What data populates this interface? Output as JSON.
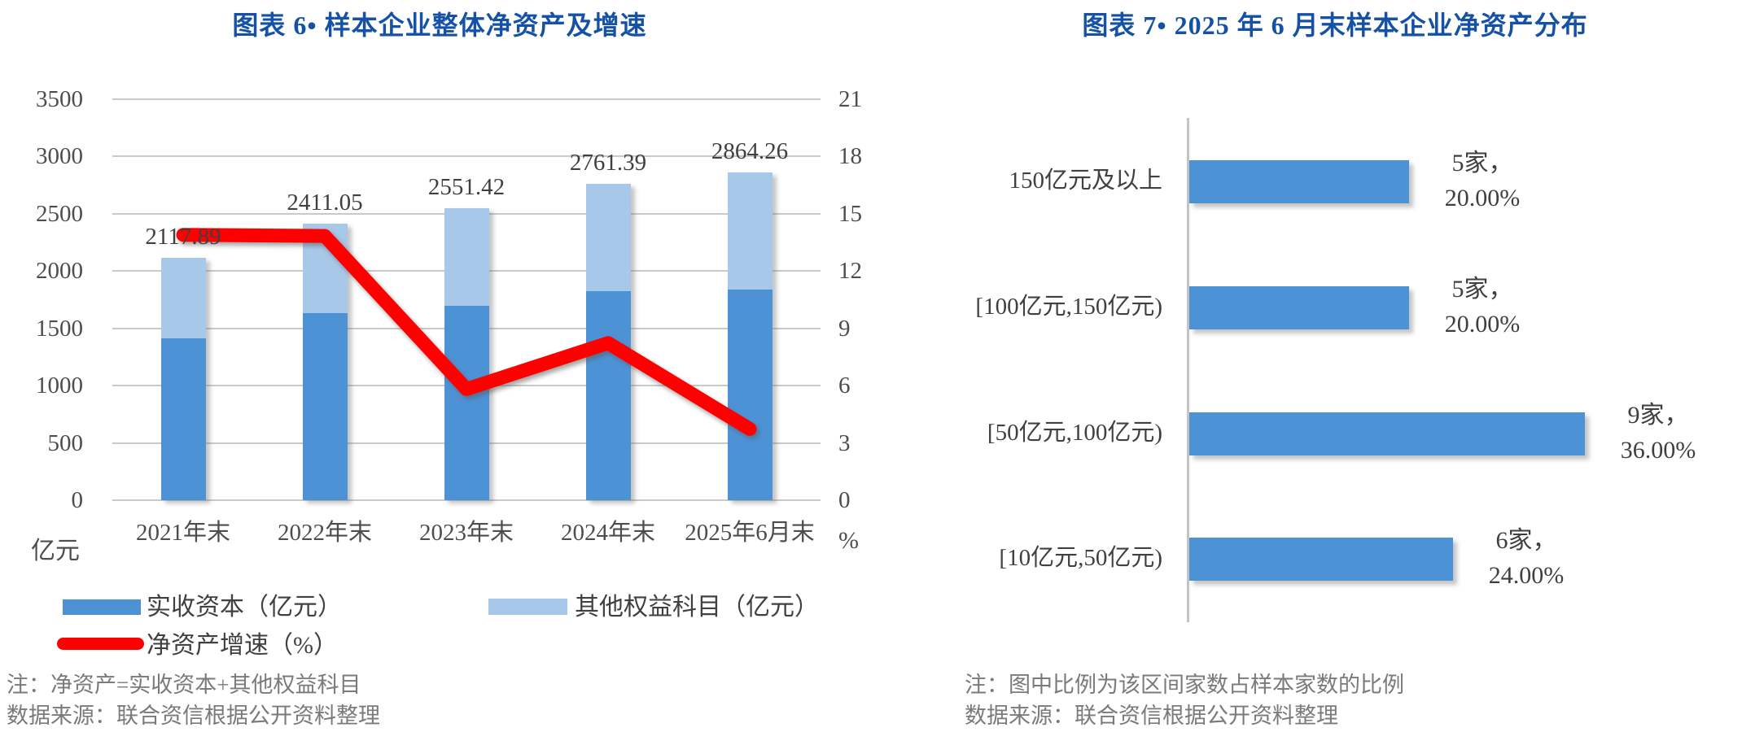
{
  "colors": {
    "title_blue": "#1552A5",
    "bar_dark_blue": "#4E92D6",
    "bar_light_blue": "#A8C8E9",
    "line_red": "#FF0000",
    "gridline": "#C9C9C9",
    "axis_text": "#4D4D4D",
    "label_text": "#3F3F3F",
    "note_text": "#7A7A7A"
  },
  "left_chart": {
    "note": "注：净资产=实收资本+其他权益科目",
    "source": "数据来源：联合资信根据公开资料整理"
  },
  "right_chart": {
    "note": "注：图中比例为该区间家数占样本家数的比例",
    "source": "数据来源：联合资信根据公开资料整理"
  },
  "chart_data": [
    {
      "type": "bar",
      "subtype": "stacked-bars-with-line",
      "title": "图表 6• 样本企业整体净资产及增速",
      "categories": [
        "2021年末",
        "2022年末",
        "2023年末",
        "2024年末",
        "2025年6月末"
      ],
      "series": [
        {
          "name": "实收资本（亿元）",
          "type": "bar",
          "stack": true,
          "axis": "left",
          "values": [
            1410,
            1635,
            1700,
            1825,
            1840
          ]
        },
        {
          "name": "其他权益科目（亿元）",
          "type": "bar",
          "stack": true,
          "axis": "left",
          "values": [
            707.89,
            776.05,
            851.42,
            936.39,
            1024.26
          ]
        },
        {
          "name": "净资产增速（%）",
          "type": "line",
          "axis": "right",
          "values": [
            13.9,
            13.84,
            5.82,
            8.23,
            3.73
          ]
        }
      ],
      "total_labels": [
        "2117.89",
        "2411.05",
        "2551.42",
        "2761.39",
        "2864.26"
      ],
      "left_axis": {
        "title": "亿元",
        "min": 0,
        "max": 3500,
        "step": 500,
        "ticks": [
          3500,
          3000,
          2500,
          2000,
          1500,
          1000,
          500,
          0
        ]
      },
      "right_axis": {
        "title": "%",
        "min": 0,
        "max": 21,
        "step": 3,
        "ticks": [
          21,
          18,
          15,
          12,
          9,
          6,
          3,
          0
        ]
      },
      "grid": true,
      "legend_position": "bottom"
    },
    {
      "type": "bar",
      "orientation": "horizontal",
      "title": "图表 7• 2025 年 6 月末样本企业净资产分布",
      "categories": [
        "150亿元及以上",
        "[100亿元,150亿元)",
        "[50亿元,100亿元)",
        "[10亿元,50亿元)"
      ],
      "values": [
        5,
        5,
        9,
        6
      ],
      "value_unit": "家",
      "percent_labels": [
        "20.00%",
        "20.00%",
        "36.00%",
        "24.00%"
      ],
      "data_labels": [
        [
          "5家，",
          "20.00%"
        ],
        [
          "5家，",
          "20.00%"
        ],
        [
          "9家，",
          "36.00%"
        ],
        [
          "6家，",
          "24.00%"
        ]
      ],
      "xlim": [
        0,
        9
      ],
      "grid": false
    }
  ]
}
